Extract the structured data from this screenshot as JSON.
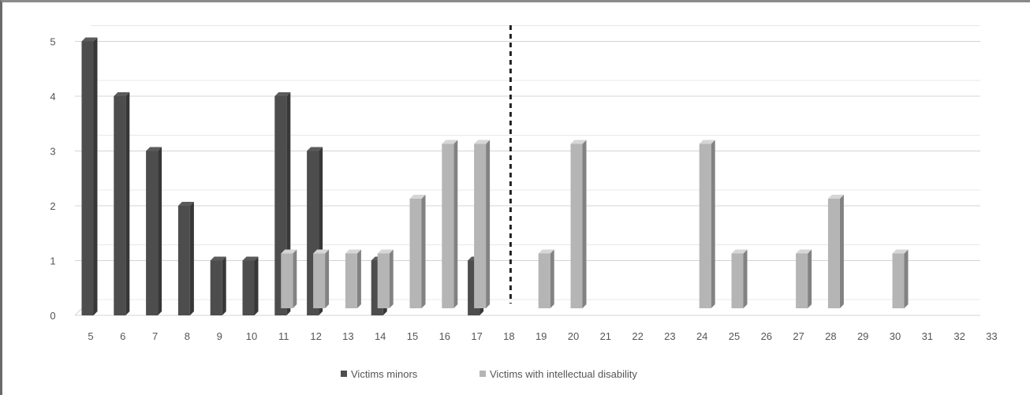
{
  "chart_data": {
    "type": "bar",
    "x": [
      5,
      6,
      7,
      8,
      9,
      10,
      11,
      12,
      13,
      14,
      15,
      16,
      17,
      18,
      19,
      20,
      21,
      22,
      23,
      24,
      25,
      26,
      27,
      28,
      29,
      30,
      31,
      32,
      33
    ],
    "ylim": [
      0,
      5
    ],
    "yticks": [
      0,
      1,
      2,
      3,
      4,
      5
    ],
    "grid": true,
    "divider_at": 18,
    "legend_position": "bottom",
    "series": [
      {
        "name": "Victims minors",
        "color": "#4d4d4d",
        "points": [
          [
            5,
            5
          ],
          [
            6,
            4
          ],
          [
            7,
            3
          ],
          [
            8,
            2
          ],
          [
            9,
            1
          ],
          [
            10,
            1
          ],
          [
            11,
            4
          ],
          [
            12,
            3
          ],
          [
            14,
            1
          ],
          [
            17,
            1
          ]
        ]
      },
      {
        "name": "Victims with intellectual disability",
        "color": "#b5b5b5",
        "points": [
          [
            11,
            1
          ],
          [
            12,
            1
          ],
          [
            13,
            1
          ],
          [
            14,
            1
          ],
          [
            15,
            2
          ],
          [
            16,
            3
          ],
          [
            17,
            3
          ],
          [
            19,
            1
          ],
          [
            20,
            3
          ],
          [
            24,
            3
          ],
          [
            25,
            1
          ],
          [
            27,
            1
          ],
          [
            28,
            2
          ],
          [
            30,
            1
          ]
        ]
      }
    ]
  }
}
